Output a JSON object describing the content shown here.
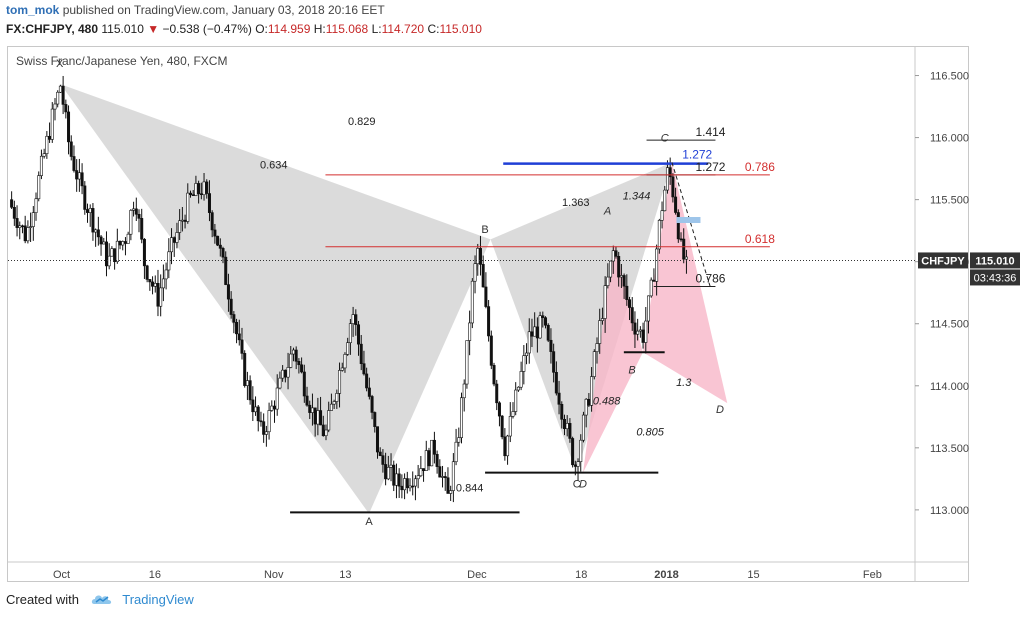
{
  "header": {
    "author": "tom_mok",
    "published_text": "published on TradingView.com, January 03, 2018 20:16 EET",
    "symbol": "FX:CHFJPY, 480",
    "last": "115.010",
    "change": "−0.538 (−0.47%)",
    "o_label": "O:",
    "o_value": "114.959",
    "h_label": "H:",
    "h_value": "115.068",
    "l_label": "L:",
    "l_value": "114.720",
    "c_label": "C:",
    "c_value": "115.010"
  },
  "footer": {
    "created_with": "Created with",
    "brand": "TradingView"
  },
  "colors": {
    "down": "#c62828",
    "fibline": "#d32f2f",
    "blueline": "#1f3fd6",
    "pattern_gray": "#cfcfcf",
    "pattern_pink": "#f7b6c8",
    "link": "#2f8ad0"
  },
  "chart_data": {
    "type": "candlestick",
    "title": "Swiss Franc/Japanese Yen, 480, FXCM",
    "ylim": [
      112.58,
      116.73
    ],
    "y_ticks": [
      113.0,
      113.5,
      114.0,
      114.5,
      115.0,
      115.5,
      116.0,
      116.5
    ],
    "x_ticks": [
      {
        "label": "Oct",
        "pos": 0.059
      },
      {
        "label": "16",
        "pos": 0.162
      },
      {
        "label": "Nov",
        "pos": 0.293
      },
      {
        "label": "13",
        "pos": 0.372
      },
      {
        "label": "Dec",
        "pos": 0.517
      },
      {
        "label": "18",
        "pos": 0.632
      },
      {
        "label": "2018",
        "pos": 0.726
      },
      {
        "label": "15",
        "pos": 0.822
      },
      {
        "label": "Feb",
        "pos": 0.953
      }
    ],
    "price_tag": {
      "symbol": "CHFJPY",
      "value": "115.010",
      "countdown": "03:43:36",
      "y": 115.01
    },
    "price_path": [
      [
        0.0,
        115.5
      ],
      [
        0.02,
        115.2
      ],
      [
        0.035,
        115.7
      ],
      [
        0.05,
        116.2
      ],
      [
        0.058,
        116.43
      ],
      [
        0.068,
        115.9
      ],
      [
        0.08,
        115.6
      ],
      [
        0.095,
        115.3
      ],
      [
        0.11,
        115.0
      ],
      [
        0.13,
        115.2
      ],
      [
        0.14,
        115.55
      ],
      [
        0.15,
        115.0
      ],
      [
        0.165,
        114.7
      ],
      [
        0.18,
        115.1
      ],
      [
        0.2,
        115.5
      ],
      [
        0.215,
        115.6
      ],
      [
        0.23,
        115.2
      ],
      [
        0.245,
        114.7
      ],
      [
        0.26,
        114.1
      ],
      [
        0.28,
        113.6
      ],
      [
        0.3,
        114.0
      ],
      [
        0.315,
        114.3
      ],
      [
        0.335,
        113.8
      ],
      [
        0.35,
        113.6
      ],
      [
        0.365,
        114.1
      ],
      [
        0.38,
        114.6
      ],
      [
        0.395,
        114.0
      ],
      [
        0.41,
        113.4
      ],
      [
        0.43,
        113.2
      ],
      [
        0.45,
        113.3
      ],
      [
        0.47,
        113.5
      ],
      [
        0.485,
        113.1
      ],
      [
        0.495,
        113.5
      ],
      [
        0.505,
        114.2
      ],
      [
        0.512,
        114.8
      ],
      [
        0.518,
        115.1
      ],
      [
        0.525,
        114.7
      ],
      [
        0.535,
        114.1
      ],
      [
        0.548,
        113.5
      ],
      [
        0.56,
        113.9
      ],
      [
        0.575,
        114.4
      ],
      [
        0.59,
        114.5
      ],
      [
        0.605,
        114.0
      ],
      [
        0.625,
        113.35
      ],
      [
        0.64,
        113.9
      ],
      [
        0.655,
        114.6
      ],
      [
        0.668,
        115.1
      ],
      [
        0.678,
        114.8
      ],
      [
        0.69,
        114.5
      ],
      [
        0.7,
        114.4
      ],
      [
        0.71,
        114.8
      ],
      [
        0.72,
        115.4
      ],
      [
        0.728,
        115.75
      ],
      [
        0.735,
        115.5
      ],
      [
        0.742,
        115.1
      ],
      [
        0.748,
        114.95
      ]
    ],
    "pattern_labels": [
      {
        "text": "X",
        "x": 0.057,
        "y": 116.57
      },
      {
        "text": "A",
        "x": 0.398,
        "y": 112.88
      },
      {
        "text": "B",
        "x": 0.526,
        "y": 115.23
      },
      {
        "text": "C",
        "x": 0.627,
        "y": 113.18
      },
      {
        "text": "D",
        "x": 0.634,
        "y": 113.18
      },
      {
        "text": "A",
        "x": 0.661,
        "y": 115.38
      },
      {
        "text": "B",
        "x": 0.688,
        "y": 114.1
      },
      {
        "text": "C",
        "x": 0.724,
        "y": 115.97
      },
      {
        "text": "D",
        "x": 0.785,
        "y": 113.78
      }
    ],
    "ratio_labels": [
      {
        "text": "0.829",
        "x": 0.39,
        "y": 116.1
      },
      {
        "text": "0.634",
        "x": 0.293,
        "y": 115.75
      },
      {
        "text": "1.363",
        "x": 0.626,
        "y": 115.45
      },
      {
        "text": "1.344",
        "x": 0.693,
        "y": 115.5
      },
      {
        "text": "0.844",
        "x": 0.509,
        "y": 113.15
      },
      {
        "text": "0.488",
        "x": 0.66,
        "y": 113.85
      },
      {
        "text": "0.805",
        "x": 0.708,
        "y": 113.6
      },
      {
        "text": "1.3",
        "x": 0.745,
        "y": 114.0
      }
    ],
    "levels": [
      {
        "label": "1.414",
        "y": 115.98,
        "x1": 0.704,
        "x2": 0.78,
        "color": "#222222"
      },
      {
        "label": "1.272",
        "y": 115.79,
        "x1": 0.546,
        "x2": 0.772,
        "color": "#1f3fd6"
      },
      {
        "label": "1.272",
        "y": 115.7,
        "x1": 0.704,
        "x2": 0.78,
        "color": "#222222"
      },
      {
        "label": "0.786",
        "y": 115.7,
        "x1": 0.35,
        "x2": 0.84,
        "color": "#d32f2f"
      },
      {
        "label": "0.618",
        "y": 115.12,
        "x1": 0.35,
        "x2": 0.84,
        "color": "#d32f2f"
      },
      {
        "label": "0.786",
        "y": 114.8,
        "x1": 0.712,
        "x2": 0.78,
        "color": "#222222"
      }
    ],
    "support_lines": [
      {
        "y": 112.98,
        "x1": 0.311,
        "x2": 0.564
      },
      {
        "y": 113.3,
        "x1": 0.526,
        "x2": 0.717
      },
      {
        "y": 114.27,
        "x1": 0.679,
        "x2": 0.724
      }
    ],
    "gray_pattern": {
      "X": [
        0.058,
        116.43
      ],
      "A": [
        0.398,
        112.97
      ],
      "B": [
        0.532,
        115.18
      ],
      "C": [
        0.627,
        113.3
      ],
      "D": [
        0.732,
        115.8
      ]
    },
    "pink_pattern": {
      "X": [
        0.634,
        113.3
      ],
      "A": [
        0.668,
        115.15
      ],
      "B": [
        0.7,
        114.27
      ],
      "C": [
        0.732,
        115.8
      ],
      "D": [
        0.793,
        113.86
      ]
    }
  }
}
